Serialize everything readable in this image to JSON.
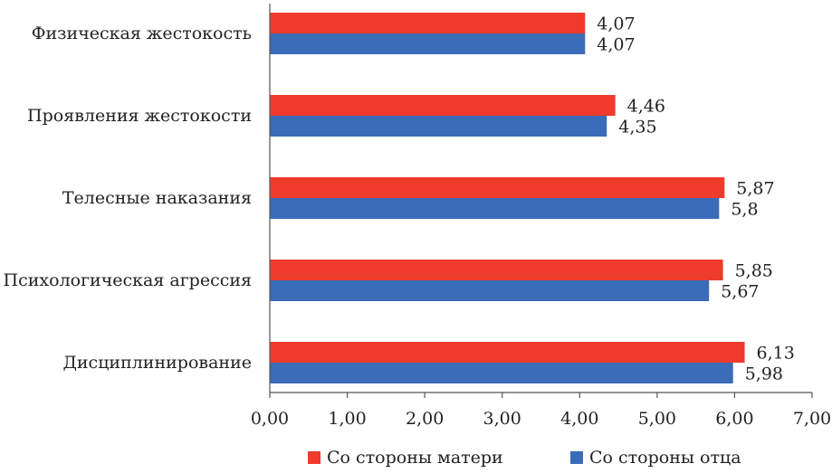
{
  "chart_data": {
    "type": "bar",
    "orientation": "horizontal",
    "categories": [
      "Физическая жестокость",
      "Проявления жестокости",
      "Телесные наказания",
      "Психологическая агрессия",
      "Дисциплинирование"
    ],
    "series": [
      {
        "name": "Со стороны матери",
        "color": "#ee3b2b",
        "values": [
          4.07,
          4.46,
          5.87,
          5.85,
          6.13
        ],
        "labels": [
          "4,07",
          "4,46",
          "5,87",
          "5,85",
          "6,13"
        ]
      },
      {
        "name": "Со стороны отца",
        "color": "#3a6cb8",
        "values": [
          4.07,
          4.35,
          5.8,
          5.67,
          5.98
        ],
        "labels": [
          "4,07",
          "4,35",
          "5,8",
          "5,67",
          "5,98"
        ]
      }
    ],
    "xlim": [
      0,
      7
    ],
    "x_ticks": [
      "0,00",
      "1,00",
      "2,00",
      "3,00",
      "4,00",
      "5,00",
      "6,00",
      "7,00"
    ],
    "grid": false,
    "legend_position": "bottom"
  }
}
